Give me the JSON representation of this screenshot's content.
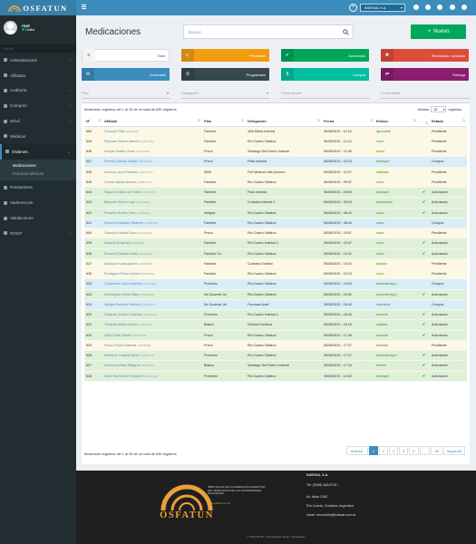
{
  "brand": {
    "name": "OSFATUN"
  },
  "user": {
    "name": "root",
    "status": "Online"
  },
  "sidebar": {
    "header": "MENU",
    "items": [
      {
        "label": "Administración",
        "icon": "gear-icon",
        "chevron": "‹"
      },
      {
        "label": "Afiliados",
        "icon": "users-icon",
        "chevron": ""
      },
      {
        "label": "Auditoría",
        "icon": "check-icon",
        "chevron": "‹"
      },
      {
        "label": "Compras",
        "icon": "cart-icon",
        "chevron": "‹"
      },
      {
        "label": "Móvil",
        "icon": "mobile-icon",
        "chevron": "‹"
      },
      {
        "label": "Médicos",
        "icon": "doctor-icon",
        "chevron": ""
      },
      {
        "label": "Órdenes",
        "icon": "file-icon",
        "chevron": "⌄"
      }
    ],
    "sub_items": [
      "Medicaciones",
      "Prácticas Médicas"
    ],
    "items2": [
      {
        "label": "Prestadores",
        "icon": "building-icon",
        "chevron": ""
      },
      {
        "label": "Vademecum",
        "icon": "book-icon",
        "chevron": ""
      },
      {
        "label": "Validaciones",
        "icon": "shield-icon",
        "chevron": ""
      },
      {
        "label": "ROOT",
        "icon": "key-icon",
        "chevron": "‹"
      }
    ]
  },
  "topbar": {
    "company": "INDESAL S.A."
  },
  "page": {
    "title": "Medicaciones",
    "search_placeholder": "Buscar",
    "new_button": "Nuevo"
  },
  "status_boxes": [
    {
      "label": "Todo",
      "color": "#ffffff",
      "text": "#444444",
      "icon": "≡"
    },
    {
      "label": "Pendiente",
      "color": "#f39c12",
      "text": "#ffffff",
      "icon": "⏳"
    },
    {
      "label": "Autorizado",
      "color": "#00a65a",
      "text": "#ffffff",
      "icon": "✔"
    },
    {
      "label": "Rechazado / Anulado",
      "color": "#dd4b39",
      "text": "#ffffff",
      "icon": "✖"
    },
    {
      "label": "Informado",
      "color": "#3c8dbc",
      "text": "#ffffff",
      "icon": "✉"
    },
    {
      "label": "Programado",
      "color": "#374850",
      "text": "#ffffff",
      "icon": "⏱"
    },
    {
      "label": "Compra",
      "color": "#00c0a0",
      "text": "#ffffff",
      "icon": "$"
    },
    {
      "label": "Entrega",
      "color": "#8b1d6e",
      "text": "#ffffff",
      "icon": "⇄"
    }
  ],
  "filters": {
    "plan": "Plan",
    "delegacion": "Delegación",
    "fecha_desde": "Fecha desde",
    "fecha_hasta": "Fecha hasta"
  },
  "table": {
    "info_top": "Mostrando registros del 1 al 25 de un total de 650 registros",
    "info_bottom": "Mostrando registros del 1 al 25 de un total de 650 registros",
    "per_page_label": "Mostrar",
    "per_page_value": "25",
    "per_page_suffix": "registros",
    "columns": [
      "Nº",
      "Afiliado",
      "Plan",
      "Delegación",
      "Fecha",
      "Emisor",
      "",
      "Estado"
    ],
    "rows": [
      {
        "n": "650",
        "name": "Ocampo Fidel",
        "doc": "(5768220)",
        "plan": "Familiar",
        "del": "Villa Maria Indesal",
        "fecha": "06/06/2019 - 11:18",
        "emisor": "lgonzalab",
        "ok": "",
        "estado": "Pendiente",
        "cls": "p"
      },
      {
        "n": "649",
        "name": "Reynoso Mauro Alberto",
        "doc": "(31037356)",
        "plan": "Familiar",
        "del": "Rio Cuarto Osfatun",
        "fecha": "06/06/2019 - 11:14",
        "emisor": "imuo",
        "ok": "",
        "estado": "Pendiente",
        "cls": "p"
      },
      {
        "n": "648",
        "name": "Aceijas Walter Omar",
        "doc": "(21037454)",
        "plan": "Prevo",
        "del": "Santiago Del Estero Indesal",
        "fecha": "06/06/2019 - 11:08",
        "emisor": "emuo",
        "ok": "",
        "estado": "Pendiente",
        "cls": "p"
      },
      {
        "n": "647",
        "name": "Pineda Claudio Rafael",
        "doc": "(20318198)",
        "plan": "Prevo",
        "del": "Frias Indesal",
        "fecha": "06/06/2019 - 10:23",
        "emisor": "aenrique",
        "ok": "",
        "estado": "Compra",
        "cls": "v"
      },
      {
        "n": "646",
        "name": "Monroy Laura Fabiana",
        "doc": "(24897273)",
        "plan": "5000",
        "del": "Full Medical Villa Dolores",
        "fecha": "06/06/2019 - 10:07",
        "emisor": "mfipiado",
        "ok": "",
        "estado": "Pendiente",
        "cls": "p"
      },
      {
        "n": "645",
        "name": "Gonda Matias Andrés",
        "doc": "(33886579)",
        "plan": "Familiar",
        "del": "Rio Cuarto Osfatun",
        "fecha": "06/06/2019 - 09:57",
        "emisor": "rmuo",
        "ok": "",
        "estado": "Pendiente",
        "cls": "p"
      },
      {
        "n": "644",
        "name": "Segura Undina Del Valle",
        "doc": "(26131787)",
        "plan": "Familiar",
        "del": "Frias Indesal",
        "fecha": "06/06/2019 - 09:53",
        "emisor": "aenrique",
        "ok": "✔",
        "estado": "Autorizado",
        "cls": "c"
      },
      {
        "n": "643",
        "name": "Bisesich Victor Hugo",
        "doc": "(13863932)",
        "plan": "Familiar",
        "del": "Cordoba Indesal 2",
        "fecha": "06/06/2019 - 09:04",
        "emisor": "tsantacesu",
        "ok": "✔",
        "estado": "Autorizado",
        "cls": "c"
      },
      {
        "n": "642",
        "name": "Ponsere Ruben Felix",
        "doc": "(10890953)",
        "plan": "Integral",
        "del": "Rio Cuarto Osfatun",
        "fecha": "06/06/2019 - 08:42",
        "emisor": "rmuo",
        "ok": "✔",
        "estado": "Autorizado",
        "cls": "c"
      },
      {
        "n": "641",
        "name": "Denchuo Natalia Elisabeth",
        "doc": "(30865029)",
        "plan": "Familiar",
        "del": "Rio Cuarto Osfatun",
        "fecha": "06/06/2019 - 08:30",
        "emisor": "rmuo",
        "ok": "",
        "estado": "Compra",
        "cls": "v"
      },
      {
        "n": "640",
        "name": "Orazola Patricia Rosa",
        "doc": "(14033929)",
        "plan": "Prevo",
        "del": "Rio Cuarto Osfatun",
        "fecha": "05/06/2019 - 19:57",
        "emisor": "rmuo",
        "ok": "",
        "estado": "Pendiente",
        "cls": "p"
      },
      {
        "n": "639",
        "name": "Navarro Brigenia",
        "doc": "(04338829)",
        "plan": "Familiar",
        "del": "Rio Cuarto Indesal 4",
        "fecha": "05/06/2019 - 19:47",
        "emisor": "rmuo",
        "ok": "✔",
        "estado": "Autorizado",
        "cls": "c"
      },
      {
        "n": "638",
        "name": "Romero Fabiana Edith",
        "doc": "(22127334)",
        "plan": "Familiar Co",
        "del": "Rio Cuarto Osfatun",
        "fecha": "05/06/2019 - 19:41",
        "emisor": "rmuo",
        "ok": "✔",
        "estado": "Autorizado",
        "cls": "c"
      },
      {
        "n": "637",
        "name": "Mussano Isaria Ayelen",
        "doc": "(36484988)",
        "plan": "Familiar",
        "del": "Cordoba Osfatun",
        "fecha": "05/06/2019 - 19:34",
        "emisor": "dpastor",
        "ok": "",
        "estado": "Pendiente",
        "cls": "p"
      },
      {
        "n": "636",
        "name": "Rodriguez Paola Vanina",
        "doc": "(29452700)",
        "plan": "Familiar",
        "del": "Rio Cuarto Osfatun",
        "fecha": "05/06/2019 - 19:23",
        "emisor": "rmuo",
        "ok": "",
        "estado": "Pendiente",
        "cls": "p"
      },
      {
        "n": "635",
        "name": "Carpintero Lobos Martina",
        "doc": "(46707494)",
        "plan": "Premium",
        "del": "Rio Cuarto Osfatun",
        "fecha": "05/06/2019 - 19:03",
        "emisor": "mmontenegro",
        "ok": "",
        "estado": "Compra",
        "cls": "v"
      },
      {
        "n": "634",
        "name": "Dominguez Silvia Mabel",
        "doc": "(16050059)",
        "plan": "No Docente Un",
        "del": "Rio Cuarto Osfatun",
        "fecha": "05/06/2019 - 18:52",
        "emisor": "mmontenegro",
        "ok": "✔",
        "estado": "Autorizado",
        "cls": "c"
      },
      {
        "n": "633",
        "name": "Vargas Recaldo Fidelina",
        "doc": "(18669847)",
        "plan": "No Docente Un",
        "del": "Formosa Unaf",
        "fecha": "05/06/2019 - 18:42",
        "emisor": "mramirez",
        "ok": "",
        "estado": "Compra",
        "cls": "v"
      },
      {
        "n": "632",
        "name": "Gallardo Jessica Soledad",
        "doc": "(33439312)",
        "plan": "Premium",
        "del": "Rio Cuarto Indesal 4",
        "fecha": "05/06/2019 - 18:40",
        "emisor": "aoviedo",
        "ok": "✔",
        "estado": "Autorizado",
        "cls": "c"
      },
      {
        "n": "631",
        "name": "Testa Armando Andres",
        "doc": "(06125001)",
        "plan": "Basico",
        "del": "General Deheza",
        "fecha": "05/06/2019 - 18:16",
        "emisor": "calzillar",
        "ok": "✔",
        "estado": "Autorizado",
        "cls": "c"
      },
      {
        "n": "630",
        "name": "Gallo Ester Noemi",
        "doc": "(05918235)",
        "plan": "Prevo",
        "del": "Rio Cuarto Osfatun",
        "fecha": "05/06/2019 - 17:46",
        "emisor": "aoviedo",
        "ok": "✔",
        "estado": "Autorizado",
        "cls": "c"
      },
      {
        "n": "629",
        "name": "Pavon Paula Marcela",
        "doc": "(22893689)",
        "plan": "Prevo",
        "del": "Rio Cuarto Osfatun",
        "fecha": "05/06/2019 - 17:37",
        "emisor": "aoviedo",
        "ok": "",
        "estado": "Pendiente",
        "cls": "p"
      },
      {
        "n": "628",
        "name": "Balhauer Luciana Belen",
        "doc": "(33616779)",
        "plan": "Premium",
        "del": "Rio Cuarto Osfatun",
        "fecha": "05/06/2019 - 17:27",
        "emisor": "mmontenegro",
        "ok": "✔",
        "estado": "Autorizado",
        "cls": "c"
      },
      {
        "n": "627",
        "name": "Ledesma Brisa Milagros",
        "doc": "(46548693)",
        "plan": "Basico",
        "del": "Santiago Del Estero Indesal",
        "fecha": "05/06/2019 - 17:10",
        "emisor": "ebelen",
        "ok": "✔",
        "estado": "Autorizado",
        "cls": "c"
      },
      {
        "n": "626",
        "name": "Nieto Humberto Fernando",
        "doc": "(20982726)",
        "plan": "Premium",
        "del": "Rio Cuarto Osfatun",
        "fecha": "05/06/2019 - 14:32",
        "emisor": "aenrique",
        "ok": "✔",
        "estado": "Autorizado",
        "cls": "c"
      }
    ]
  },
  "pagination": {
    "prev": "Anterior",
    "pages": [
      "1",
      "2",
      "3",
      "4",
      "5",
      "…",
      "26"
    ],
    "next": "Siguiente"
  },
  "footer": {
    "logo_text": "OSFATUN",
    "caption": "OBRA SOCIAL DE LA FEDERACIÓN ARGENTINA DEL TRABAJADOR DE LAS UNIVERSIDADES NACIONALES",
    "url": "www.osfatun.com.ar",
    "company": "INDESAL S.A.",
    "tel": "Tel: (0358) 4624718 /",
    "address": "Av. Italia 1260",
    "city": "Río Cuarto, Córdoba, Argentina",
    "email": "email: rmocoello@indesal.com.ar",
    "copyright": "© 2019 OFTEC · Desarrollador Ideas y Tecnologías"
  }
}
